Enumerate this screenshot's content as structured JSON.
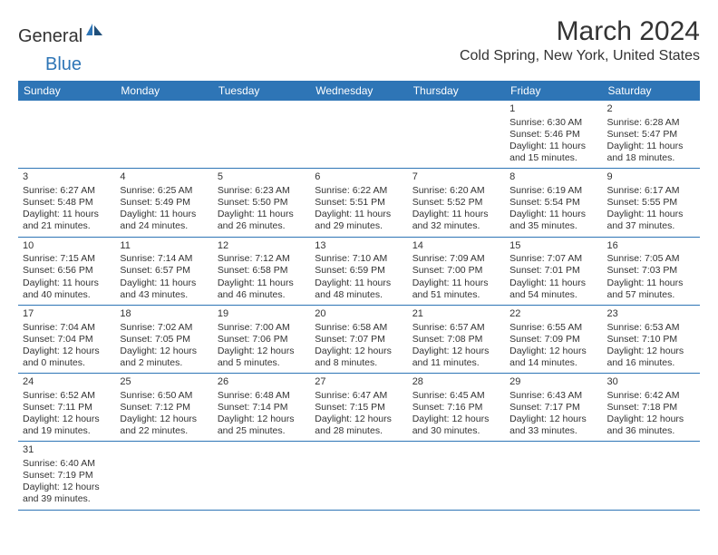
{
  "logo": {
    "text1": "General",
    "text2": "Blue"
  },
  "title": "March 2024",
  "location": "Cold Spring, New York, United States",
  "colors": {
    "header_bg": "#2e75b6",
    "header_text": "#ffffff",
    "border": "#2e75b6",
    "body_text": "#333333",
    "background": "#ffffff"
  },
  "weekdays": [
    "Sunday",
    "Monday",
    "Tuesday",
    "Wednesday",
    "Thursday",
    "Friday",
    "Saturday"
  ],
  "weeks": [
    [
      null,
      null,
      null,
      null,
      null,
      {
        "n": "1",
        "sr": "Sunrise: 6:30 AM",
        "ss": "Sunset: 5:46 PM",
        "d1": "Daylight: 11 hours",
        "d2": "and 15 minutes."
      },
      {
        "n": "2",
        "sr": "Sunrise: 6:28 AM",
        "ss": "Sunset: 5:47 PM",
        "d1": "Daylight: 11 hours",
        "d2": "and 18 minutes."
      }
    ],
    [
      {
        "n": "3",
        "sr": "Sunrise: 6:27 AM",
        "ss": "Sunset: 5:48 PM",
        "d1": "Daylight: 11 hours",
        "d2": "and 21 minutes."
      },
      {
        "n": "4",
        "sr": "Sunrise: 6:25 AM",
        "ss": "Sunset: 5:49 PM",
        "d1": "Daylight: 11 hours",
        "d2": "and 24 minutes."
      },
      {
        "n": "5",
        "sr": "Sunrise: 6:23 AM",
        "ss": "Sunset: 5:50 PM",
        "d1": "Daylight: 11 hours",
        "d2": "and 26 minutes."
      },
      {
        "n": "6",
        "sr": "Sunrise: 6:22 AM",
        "ss": "Sunset: 5:51 PM",
        "d1": "Daylight: 11 hours",
        "d2": "and 29 minutes."
      },
      {
        "n": "7",
        "sr": "Sunrise: 6:20 AM",
        "ss": "Sunset: 5:52 PM",
        "d1": "Daylight: 11 hours",
        "d2": "and 32 minutes."
      },
      {
        "n": "8",
        "sr": "Sunrise: 6:19 AM",
        "ss": "Sunset: 5:54 PM",
        "d1": "Daylight: 11 hours",
        "d2": "and 35 minutes."
      },
      {
        "n": "9",
        "sr": "Sunrise: 6:17 AM",
        "ss": "Sunset: 5:55 PM",
        "d1": "Daylight: 11 hours",
        "d2": "and 37 minutes."
      }
    ],
    [
      {
        "n": "10",
        "sr": "Sunrise: 7:15 AM",
        "ss": "Sunset: 6:56 PM",
        "d1": "Daylight: 11 hours",
        "d2": "and 40 minutes."
      },
      {
        "n": "11",
        "sr": "Sunrise: 7:14 AM",
        "ss": "Sunset: 6:57 PM",
        "d1": "Daylight: 11 hours",
        "d2": "and 43 minutes."
      },
      {
        "n": "12",
        "sr": "Sunrise: 7:12 AM",
        "ss": "Sunset: 6:58 PM",
        "d1": "Daylight: 11 hours",
        "d2": "and 46 minutes."
      },
      {
        "n": "13",
        "sr": "Sunrise: 7:10 AM",
        "ss": "Sunset: 6:59 PM",
        "d1": "Daylight: 11 hours",
        "d2": "and 48 minutes."
      },
      {
        "n": "14",
        "sr": "Sunrise: 7:09 AM",
        "ss": "Sunset: 7:00 PM",
        "d1": "Daylight: 11 hours",
        "d2": "and 51 minutes."
      },
      {
        "n": "15",
        "sr": "Sunrise: 7:07 AM",
        "ss": "Sunset: 7:01 PM",
        "d1": "Daylight: 11 hours",
        "d2": "and 54 minutes."
      },
      {
        "n": "16",
        "sr": "Sunrise: 7:05 AM",
        "ss": "Sunset: 7:03 PM",
        "d1": "Daylight: 11 hours",
        "d2": "and 57 minutes."
      }
    ],
    [
      {
        "n": "17",
        "sr": "Sunrise: 7:04 AM",
        "ss": "Sunset: 7:04 PM",
        "d1": "Daylight: 12 hours",
        "d2": "and 0 minutes."
      },
      {
        "n": "18",
        "sr": "Sunrise: 7:02 AM",
        "ss": "Sunset: 7:05 PM",
        "d1": "Daylight: 12 hours",
        "d2": "and 2 minutes."
      },
      {
        "n": "19",
        "sr": "Sunrise: 7:00 AM",
        "ss": "Sunset: 7:06 PM",
        "d1": "Daylight: 12 hours",
        "d2": "and 5 minutes."
      },
      {
        "n": "20",
        "sr": "Sunrise: 6:58 AM",
        "ss": "Sunset: 7:07 PM",
        "d1": "Daylight: 12 hours",
        "d2": "and 8 minutes."
      },
      {
        "n": "21",
        "sr": "Sunrise: 6:57 AM",
        "ss": "Sunset: 7:08 PM",
        "d1": "Daylight: 12 hours",
        "d2": "and 11 minutes."
      },
      {
        "n": "22",
        "sr": "Sunrise: 6:55 AM",
        "ss": "Sunset: 7:09 PM",
        "d1": "Daylight: 12 hours",
        "d2": "and 14 minutes."
      },
      {
        "n": "23",
        "sr": "Sunrise: 6:53 AM",
        "ss": "Sunset: 7:10 PM",
        "d1": "Daylight: 12 hours",
        "d2": "and 16 minutes."
      }
    ],
    [
      {
        "n": "24",
        "sr": "Sunrise: 6:52 AM",
        "ss": "Sunset: 7:11 PM",
        "d1": "Daylight: 12 hours",
        "d2": "and 19 minutes."
      },
      {
        "n": "25",
        "sr": "Sunrise: 6:50 AM",
        "ss": "Sunset: 7:12 PM",
        "d1": "Daylight: 12 hours",
        "d2": "and 22 minutes."
      },
      {
        "n": "26",
        "sr": "Sunrise: 6:48 AM",
        "ss": "Sunset: 7:14 PM",
        "d1": "Daylight: 12 hours",
        "d2": "and 25 minutes."
      },
      {
        "n": "27",
        "sr": "Sunrise: 6:47 AM",
        "ss": "Sunset: 7:15 PM",
        "d1": "Daylight: 12 hours",
        "d2": "and 28 minutes."
      },
      {
        "n": "28",
        "sr": "Sunrise: 6:45 AM",
        "ss": "Sunset: 7:16 PM",
        "d1": "Daylight: 12 hours",
        "d2": "and 30 minutes."
      },
      {
        "n": "29",
        "sr": "Sunrise: 6:43 AM",
        "ss": "Sunset: 7:17 PM",
        "d1": "Daylight: 12 hours",
        "d2": "and 33 minutes."
      },
      {
        "n": "30",
        "sr": "Sunrise: 6:42 AM",
        "ss": "Sunset: 7:18 PM",
        "d1": "Daylight: 12 hours",
        "d2": "and 36 minutes."
      }
    ],
    [
      {
        "n": "31",
        "sr": "Sunrise: 6:40 AM",
        "ss": "Sunset: 7:19 PM",
        "d1": "Daylight: 12 hours",
        "d2": "and 39 minutes."
      },
      null,
      null,
      null,
      null,
      null,
      null
    ]
  ]
}
